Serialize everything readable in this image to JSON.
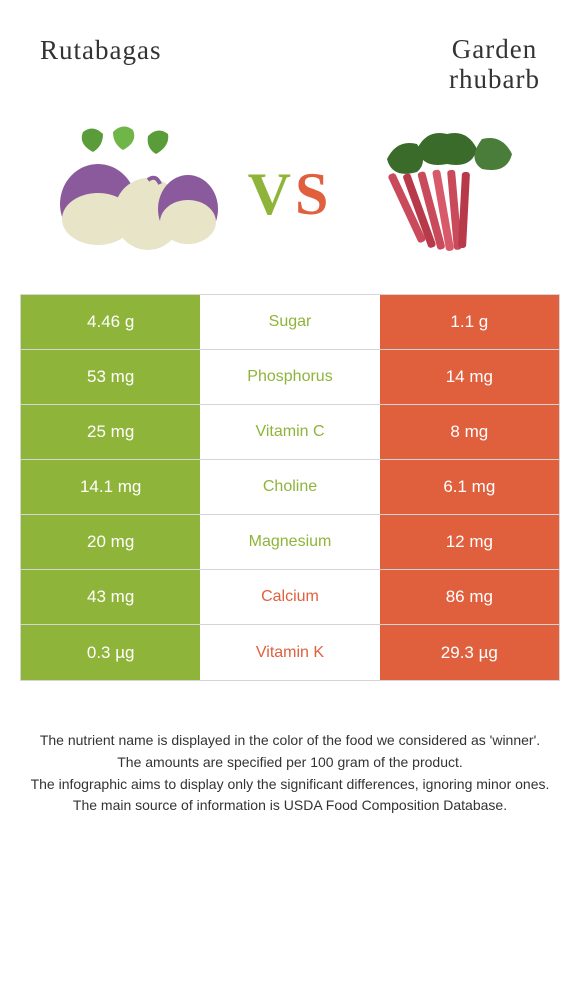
{
  "header": {
    "left": "Rutabagas",
    "right_line1": "Garden",
    "right_line2": "rhubarb"
  },
  "vs": {
    "v": "V",
    "s": "S"
  },
  "colors": {
    "left": "#8fb43a",
    "right": "#e0603e",
    "border": "#d5d5d5",
    "text_white": "#ffffff"
  },
  "rows": [
    {
      "left": "4.46 g",
      "label": "Sugar",
      "right": "1.1 g",
      "winner": "left"
    },
    {
      "left": "53 mg",
      "label": "Phosphorus",
      "right": "14 mg",
      "winner": "left"
    },
    {
      "left": "25 mg",
      "label": "Vitamin C",
      "right": "8 mg",
      "winner": "left"
    },
    {
      "left": "14.1 mg",
      "label": "Choline",
      "right": "6.1 mg",
      "winner": "left"
    },
    {
      "left": "20 mg",
      "label": "Magnesium",
      "right": "12 mg",
      "winner": "left"
    },
    {
      "left": "43 mg",
      "label": "Calcium",
      "right": "86 mg",
      "winner": "right"
    },
    {
      "left": "0.3 µg",
      "label": "Vitamin K",
      "right": "29.3 µg",
      "winner": "right"
    }
  ],
  "footer": {
    "l1": "The nutrient name is displayed in the color of the food we considered as 'winner'.",
    "l2": "The amounts are specified per 100 gram of the product.",
    "l3": "The infographic aims to display only the significant differences, ignoring minor ones.",
    "l4": "The main source of information is USDA Food Composition Database."
  }
}
